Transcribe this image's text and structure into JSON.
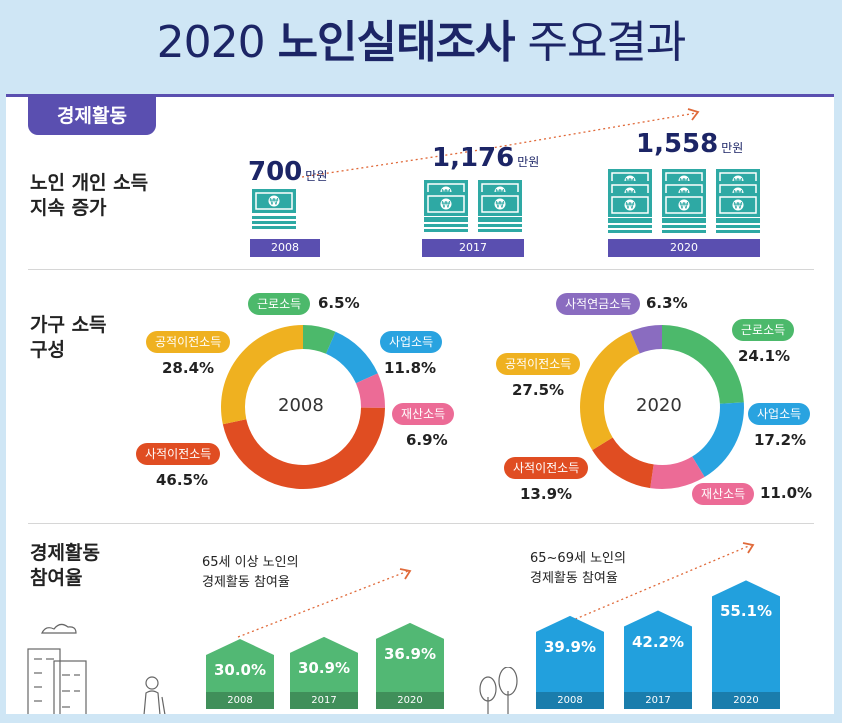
{
  "title": {
    "year": "2020",
    "bold": "노인실태조사",
    "light": "주요결과"
  },
  "tag": "경제활동",
  "section1": {
    "label_line1": "노인 개인 소득",
    "label_line2": "지속 증가",
    "unit": "만원",
    "items": [
      {
        "year": "2008",
        "value": "700"
      },
      {
        "year": "2017",
        "value": "1,176"
      },
      {
        "year": "2020",
        "value": "1,558"
      }
    ]
  },
  "section2": {
    "label_line1": "가구 소득",
    "label_line2": "구성",
    "donut2008": {
      "center": "2008",
      "slices": [
        {
          "name": "근로소득",
          "pct": "6.5%",
          "value": 6.5,
          "color": "#4cb96b"
        },
        {
          "name": "사업소득",
          "pct": "11.8%",
          "value": 11.8,
          "color": "#29a3e0"
        },
        {
          "name": "재산소득",
          "pct": "6.9%",
          "value": 6.9,
          "color": "#ec6b96"
        },
        {
          "name": "사적이전소득",
          "pct": "46.5%",
          "value": 46.5,
          "color": "#e04d22"
        },
        {
          "name": "공적이전소득",
          "pct": "28.4%",
          "value": 28.4,
          "color": "#efb120"
        }
      ]
    },
    "donut2020": {
      "center": "2020",
      "slices": [
        {
          "name": "근로소득",
          "pct": "24.1%",
          "value": 24.1,
          "color": "#4cb96b"
        },
        {
          "name": "사업소득",
          "pct": "17.2%",
          "value": 17.2,
          "color": "#29a3e0"
        },
        {
          "name": "재산소득",
          "pct": "11.0%",
          "value": 11.0,
          "color": "#ec6b96"
        },
        {
          "name": "사적이전소득",
          "pct": "13.9%",
          "value": 13.9,
          "color": "#e04d22"
        },
        {
          "name": "공적이전소득",
          "pct": "27.5%",
          "value": 27.5,
          "color": "#efb120"
        },
        {
          "name": "사적연금소득",
          "pct": "6.3%",
          "value": 6.3,
          "color": "#8a6cc0"
        }
      ]
    }
  },
  "section3": {
    "label_line1": "경제활동",
    "label_line2": "참여율",
    "groupA": {
      "caption_line1": "65세 이상 노인의",
      "caption_line2": "경제활동 참여율",
      "color": "#52b874",
      "bars": [
        {
          "year": "2008",
          "label": "30.0%",
          "value": 30.0
        },
        {
          "year": "2017",
          "label": "30.9%",
          "value": 30.9
        },
        {
          "year": "2020",
          "label": "36.9%",
          "value": 36.9
        }
      ]
    },
    "groupB": {
      "caption_line1": "65~69세 노인의",
      "caption_line2": "경제활동 참여율",
      "color": "#22a0dd",
      "bars": [
        {
          "year": "2008",
          "label": "39.9%",
          "value": 39.9
        },
        {
          "year": "2017",
          "label": "42.2%",
          "value": 42.2
        },
        {
          "year": "2020",
          "label": "55.1%",
          "value": 55.1
        }
      ]
    }
  }
}
